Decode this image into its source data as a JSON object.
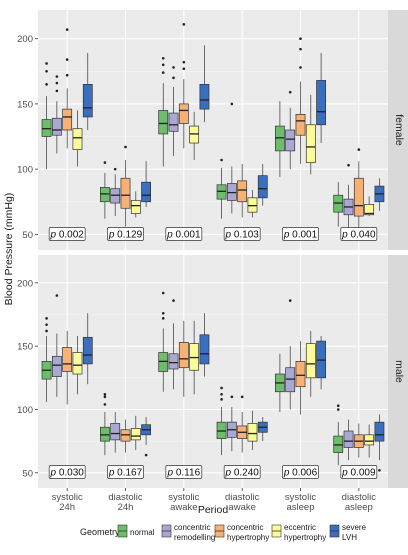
{
  "chart_data": {
    "type": "box",
    "ylabel": "Blood Pressure (mmHg)",
    "xlabel": "Period",
    "ylim": [
      38,
      222
    ],
    "y_ticks": [
      50,
      100,
      150,
      200
    ],
    "grid": true,
    "legend": {
      "title": "Geometry",
      "position": "bottom",
      "items": [
        {
          "label": "normal",
          "color": "#6DBE6A"
        },
        {
          "label": "concentric\nremodelling",
          "color": "#A9A8D4"
        },
        {
          "label": "concentric\nhypertrophy",
          "color": "#F8B175"
        },
        {
          "label": "eccentric\nhypertrophy",
          "color": "#FCFB99"
        },
        {
          "label": "severe\nLVH",
          "color": "#3A6EBF"
        }
      ]
    },
    "categories": [
      "systolic\n24h",
      "diastolic\n24h",
      "systolic\nawake",
      "diastolic\nawake",
      "systolic\nasleep",
      "diastolic\nasleep"
    ],
    "panels": [
      {
        "strip": "female",
        "p_values": [
          "p 0.002",
          "p 0.129",
          "p 0.001",
          "p 0.103",
          "p 0.001",
          "p 0.040"
        ],
        "groups": [
          [
            {
              "wl": 100,
              "q1": 125,
              "med": 131,
              "q3": 138,
              "wh": 156,
              "out": [
                165,
                175,
                181
              ]
            },
            {
              "wl": 112,
              "q1": 126,
              "med": 130,
              "q3": 139,
              "wh": 152,
              "out": [
                160,
                166,
                171
              ]
            },
            {
              "wl": 116,
              "q1": 130,
              "med": 140,
              "q3": 146,
              "wh": 162,
              "out": [
                172,
                184,
                207
              ]
            },
            {
              "wl": 102,
              "q1": 115,
              "med": 124,
              "q3": 131,
              "wh": 145,
              "out": []
            },
            {
              "wl": 130,
              "q1": 140,
              "med": 147,
              "q3": 165,
              "wh": 189,
              "out": []
            }
          ],
          [
            {
              "wl": 62,
              "q1": 75,
              "med": 81,
              "q3": 86,
              "wh": 97,
              "out": [
                105
              ]
            },
            {
              "wl": 64,
              "q1": 74,
              "med": 80,
              "q3": 85,
              "wh": 96,
              "out": [
                100
              ]
            },
            {
              "wl": 56,
              "q1": 70,
              "med": 80,
              "q3": 93,
              "wh": 107,
              "out": [
                117
              ]
            },
            {
              "wl": 63,
              "q1": 66,
              "med": 72,
              "q3": 76,
              "wh": 83,
              "out": []
            },
            {
              "wl": 71,
              "q1": 75,
              "med": 80,
              "q3": 90,
              "wh": 106,
              "out": []
            }
          ],
          [
            {
              "wl": 102,
              "q1": 127,
              "med": 135,
              "q3": 145,
              "wh": 166,
              "out": [
                174,
                180,
                185
              ]
            },
            {
              "wl": 110,
              "q1": 129,
              "med": 134,
              "q3": 143,
              "wh": 163,
              "out": [
                170,
                178
              ]
            },
            {
              "wl": 116,
              "q1": 135,
              "med": 145,
              "q3": 150,
              "wh": 169,
              "out": [
                177,
                182,
                211
              ]
            },
            {
              "wl": 107,
              "q1": 120,
              "med": 127,
              "q3": 133,
              "wh": 144,
              "out": []
            },
            {
              "wl": 136,
              "q1": 146,
              "med": 153,
              "q3": 165,
              "wh": 195,
              "out": []
            }
          ],
          [
            {
              "wl": 62,
              "q1": 77,
              "med": 83,
              "q3": 88,
              "wh": 101,
              "out": [
                107
              ]
            },
            {
              "wl": 66,
              "q1": 76,
              "med": 82,
              "q3": 89,
              "wh": 102,
              "out": [
                150
              ]
            },
            {
              "wl": 63,
              "q1": 75,
              "med": 84,
              "q3": 91,
              "wh": 104,
              "out": []
            },
            {
              "wl": 63,
              "q1": 67,
              "med": 72,
              "q3": 78,
              "wh": 84,
              "out": []
            },
            {
              "wl": 72,
              "q1": 78,
              "med": 85,
              "q3": 95,
              "wh": 104,
              "out": []
            }
          ],
          [
            {
              "wl": 94,
              "q1": 114,
              "med": 124,
              "q3": 133,
              "wh": 152,
              "out": []
            },
            {
              "wl": 100,
              "q1": 114,
              "med": 123,
              "q3": 130,
              "wh": 147,
              "out": [
                159
              ]
            },
            {
              "wl": 104,
              "q1": 126,
              "med": 137,
              "q3": 142,
              "wh": 167,
              "out": [
                178,
                192,
                200
              ]
            },
            {
              "wl": 96,
              "q1": 105,
              "med": 117,
              "q3": 134,
              "wh": 157,
              "out": []
            },
            {
              "wl": 120,
              "q1": 134,
              "med": 144,
              "q3": 168,
              "wh": 189,
              "out": []
            }
          ],
          [
            {
              "wl": 56,
              "q1": 67,
              "med": 74,
              "q3": 80,
              "wh": 90,
              "out": []
            },
            {
              "wl": 54,
              "q1": 65,
              "med": 71,
              "q3": 77,
              "wh": 88,
              "out": [
                103
              ]
            },
            {
              "wl": 50,
              "q1": 64,
              "med": 72,
              "q3": 93,
              "wh": 106,
              "out": [
                115
              ]
            },
            {
              "wl": 64,
              "q1": 65,
              "med": 66,
              "q3": 73,
              "wh": 79,
              "out": []
            },
            {
              "wl": 68,
              "q1": 75,
              "med": 81,
              "q3": 87,
              "wh": 93,
              "out": []
            }
          ]
        ]
      },
      {
        "strip": "male",
        "p_values": [
          "p 0.030",
          "p 0.167",
          "p 0.116",
          "p 0.240",
          "p 0.006",
          "p 0.009"
        ],
        "groups": [
          [
            {
              "wl": 106,
              "q1": 124,
              "med": 131,
              "q3": 138,
              "wh": 158,
              "out": [
                162,
                167,
                172
              ]
            },
            {
              "wl": 110,
              "q1": 126,
              "med": 135,
              "q3": 142,
              "wh": 160,
              "out": [
                190
              ]
            },
            {
              "wl": 104,
              "q1": 130,
              "med": 136,
              "q3": 149,
              "wh": 162,
              "out": []
            },
            {
              "wl": 112,
              "q1": 128,
              "med": 135,
              "q3": 145,
              "wh": 158,
              "out": []
            },
            {
              "wl": 120,
              "q1": 136,
              "med": 143,
              "q3": 157,
              "wh": 176,
              "out": []
            }
          ],
          [
            {
              "wl": 64,
              "q1": 75,
              "med": 80,
              "q3": 86,
              "wh": 98,
              "out": [
                104,
                110,
                112
              ]
            },
            {
              "wl": 66,
              "q1": 76,
              "med": 81,
              "q3": 89,
              "wh": 98,
              "out": []
            },
            {
              "wl": 66,
              "q1": 75,
              "med": 80,
              "q3": 84,
              "wh": 92,
              "out": []
            },
            {
              "wl": 68,
              "q1": 76,
              "med": 79,
              "q3": 85,
              "wh": 95,
              "out": []
            },
            {
              "wl": 72,
              "q1": 80,
              "med": 84,
              "q3": 88,
              "wh": 94,
              "out": [
                64
              ]
            }
          ],
          [
            {
              "wl": 114,
              "q1": 130,
              "med": 138,
              "q3": 145,
              "wh": 164,
              "out": [
                172,
                176,
                192
              ]
            },
            {
              "wl": 116,
              "q1": 132,
              "med": 137,
              "q3": 144,
              "wh": 168,
              "out": [
                186
              ]
            },
            {
              "wl": 110,
              "q1": 133,
              "med": 140,
              "q3": 153,
              "wh": 170,
              "out": []
            },
            {
              "wl": 112,
              "q1": 131,
              "med": 141,
              "q3": 152,
              "wh": 170,
              "out": []
            },
            {
              "wl": 126,
              "q1": 136,
              "med": 144,
              "q3": 159,
              "wh": 176,
              "out": []
            }
          ],
          [
            {
              "wl": 64,
              "q1": 77,
              "med": 83,
              "q3": 90,
              "wh": 102,
              "out": [
                108,
                112,
                117
              ]
            },
            {
              "wl": 67,
              "q1": 78,
              "med": 84,
              "q3": 90,
              "wh": 102,
              "out": [
                110
              ]
            },
            {
              "wl": 66,
              "q1": 77,
              "med": 82,
              "q3": 87,
              "wh": 98,
              "out": [
                110
              ]
            },
            {
              "wl": 68,
              "q1": 75,
              "med": 81,
              "q3": 89,
              "wh": 99,
              "out": []
            },
            {
              "wl": 75,
              "q1": 82,
              "med": 86,
              "q3": 90,
              "wh": 94,
              "out": []
            }
          ],
          [
            {
              "wl": 98,
              "q1": 114,
              "med": 121,
              "q3": 128,
              "wh": 144,
              "out": []
            },
            {
              "wl": 100,
              "q1": 114,
              "med": 124,
              "q3": 133,
              "wh": 150,
              "out": [
                186
              ]
            },
            {
              "wl": 96,
              "q1": 118,
              "med": 127,
              "q3": 138,
              "wh": 154,
              "out": []
            },
            {
              "wl": 110,
              "q1": 125,
              "med": 136,
              "q3": 152,
              "wh": 162,
              "out": []
            },
            {
              "wl": 116,
              "q1": 125,
              "med": 139,
              "q3": 154,
              "wh": 158,
              "out": []
            }
          ],
          [
            {
              "wl": 56,
              "q1": 66,
              "med": 72,
              "q3": 79,
              "wh": 90,
              "out": [
                100,
                103
              ]
            },
            {
              "wl": 60,
              "q1": 70,
              "med": 75,
              "q3": 83,
              "wh": 92,
              "out": []
            },
            {
              "wl": 62,
              "q1": 70,
              "med": 75,
              "q3": 80,
              "wh": 89,
              "out": []
            },
            {
              "wl": 62,
              "q1": 72,
              "med": 75,
              "q3": 80,
              "wh": 88,
              "out": []
            },
            {
              "wl": 60,
              "q1": 75,
              "med": 80,
              "q3": 90,
              "wh": 96,
              "out": [
                52
              ]
            }
          ]
        ]
      }
    ]
  }
}
